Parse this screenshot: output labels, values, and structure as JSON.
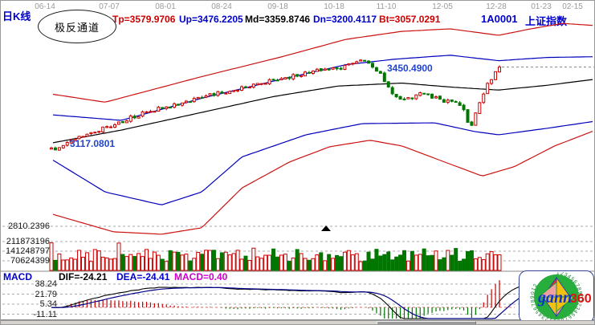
{
  "window": {
    "chart_type_label": "日K线",
    "stock_code": "1A0001",
    "stock_name": "上证指数"
  },
  "indicator_header": {
    "name": "极反通道",
    "tp_label": "Tp=3579.9706",
    "up_label": "Up=3476.2205",
    "md_label": "Md=3359.8746",
    "dn_label": "Dn=3200.4117",
    "bt_label": "Bt=3057.0291"
  },
  "colors": {
    "up_candle": "#cc0000",
    "down_candle": "#007700",
    "channel_red": "#cc1111",
    "channel_blue": "#0000bb",
    "channel_mid": "#000000",
    "grid": "#aaaaaa",
    "dif_line": "#000000",
    "dea_line": "#000088",
    "macd_label": "#cc00cc"
  },
  "chart_data": {
    "type": "candlestick",
    "title": "上证指数 日K线 极反通道",
    "x_dates": [
      "06-14",
      "07-07",
      "08-01",
      "08-24",
      "09-18",
      "10-18",
      "11-10",
      "12-05",
      "12-28",
      "01-23",
      "02-15"
    ],
    "price_axis": {
      "bottom_label": "2810.2396",
      "min": 2810,
      "max": 3620
    },
    "channel_values": {
      "Tp": 3579.9706,
      "Up": 3476.2205,
      "Md": 3359.8746,
      "Dn": 3200.4117,
      "Bt": 3057.0291
    },
    "annotations": [
      {
        "text": "3450.4900",
        "value": 3450.49
      },
      {
        "text": "3117.0801",
        "value": 3117.0801
      }
    ],
    "last_close": 3450.49,
    "candle_count": 114,
    "trend_keypoints": [
      [
        0,
        3117
      ],
      [
        0.05,
        3160
      ],
      [
        0.12,
        3205
      ],
      [
        0.2,
        3262
      ],
      [
        0.3,
        3312
      ],
      [
        0.4,
        3356
      ],
      [
        0.5,
        3400
      ],
      [
        0.58,
        3432
      ],
      [
        0.65,
        3448
      ],
      [
        0.7,
        3478
      ],
      [
        0.73,
        3432
      ],
      [
        0.76,
        3345
      ],
      [
        0.79,
        3315
      ],
      [
        0.82,
        3348
      ],
      [
        0.86,
        3322
      ],
      [
        0.9,
        3308
      ],
      [
        0.92,
        3282
      ],
      [
        0.935,
        3196
      ],
      [
        0.95,
        3282
      ],
      [
        0.97,
        3372
      ],
      [
        1,
        3450.49
      ]
    ],
    "channel_lines": {
      "Tp": [
        [
          0,
          3341
        ],
        [
          0.096,
          3309
        ],
        [
          0.274,
          3412
        ],
        [
          0.422,
          3492
        ],
        [
          0.54,
          3562
        ],
        [
          0.643,
          3594
        ],
        [
          0.732,
          3604
        ],
        [
          0.821,
          3578
        ],
        [
          0.88,
          3604
        ],
        [
          0.939,
          3626
        ],
        [
          1,
          3617
        ]
      ],
      "Up": [
        [
          0,
          3258
        ],
        [
          0.126,
          3236
        ],
        [
          0.274,
          3325
        ],
        [
          0.422,
          3402
        ],
        [
          0.54,
          3460
        ],
        [
          0.629,
          3482
        ],
        [
          0.732,
          3498
        ],
        [
          0.821,
          3476
        ],
        [
          0.91,
          3489
        ],
        [
          1,
          3492
        ]
      ],
      "Md": [
        [
          0,
          3146
        ],
        [
          0.126,
          3197
        ],
        [
          0.274,
          3268
        ],
        [
          0.407,
          3332
        ],
        [
          0.525,
          3374
        ],
        [
          0.643,
          3386
        ],
        [
          0.732,
          3370
        ],
        [
          0.821,
          3358
        ],
        [
          0.91,
          3377
        ],
        [
          1,
          3402
        ]
      ],
      "Dn": [
        [
          0,
          3076
        ],
        [
          0.096,
          2948
        ],
        [
          0.2,
          2896
        ],
        [
          0.274,
          2948
        ],
        [
          0.348,
          3089
        ],
        [
          0.466,
          3178
        ],
        [
          0.57,
          3223
        ],
        [
          0.703,
          3226
        ],
        [
          0.777,
          3191
        ],
        [
          0.821,
          3178
        ],
        [
          0.91,
          3204
        ],
        [
          1,
          3233
        ]
      ],
      "Bt": [
        [
          0,
          2858
        ],
        [
          0.111,
          2788
        ],
        [
          0.2,
          2778
        ],
        [
          0.274,
          2804
        ],
        [
          0.348,
          2964
        ],
        [
          0.436,
          3069
        ],
        [
          0.51,
          3130
        ],
        [
          0.584,
          3156
        ],
        [
          0.643,
          3133
        ],
        [
          0.732,
          3060
        ],
        [
          0.791,
          3012
        ],
        [
          0.85,
          3050
        ],
        [
          0.924,
          3133
        ],
        [
          1,
          3197
        ]
      ]
    },
    "volume_axis_labels": [
      "211873196",
      "141248797",
      "70624399"
    ],
    "volume_gridline_values": [
      211873196,
      141248797,
      70624399
    ],
    "volume_max": 240000000,
    "macd": {
      "label": "MACD",
      "dif_label": "DIF=-24.21",
      "dea_label": "DEA=-24.41",
      "macd_label": "MACD=0.40",
      "axis_labels": [
        "38.24",
        "21.79",
        "5.34",
        "-11.11"
      ],
      "axis_values": [
        38.24,
        21.79,
        5.34,
        -11.11
      ]
    }
  },
  "logo": {
    "text_gann": "gann",
    "text_360": "360",
    "ring_digits": "12345678901234567890123456789012"
  }
}
